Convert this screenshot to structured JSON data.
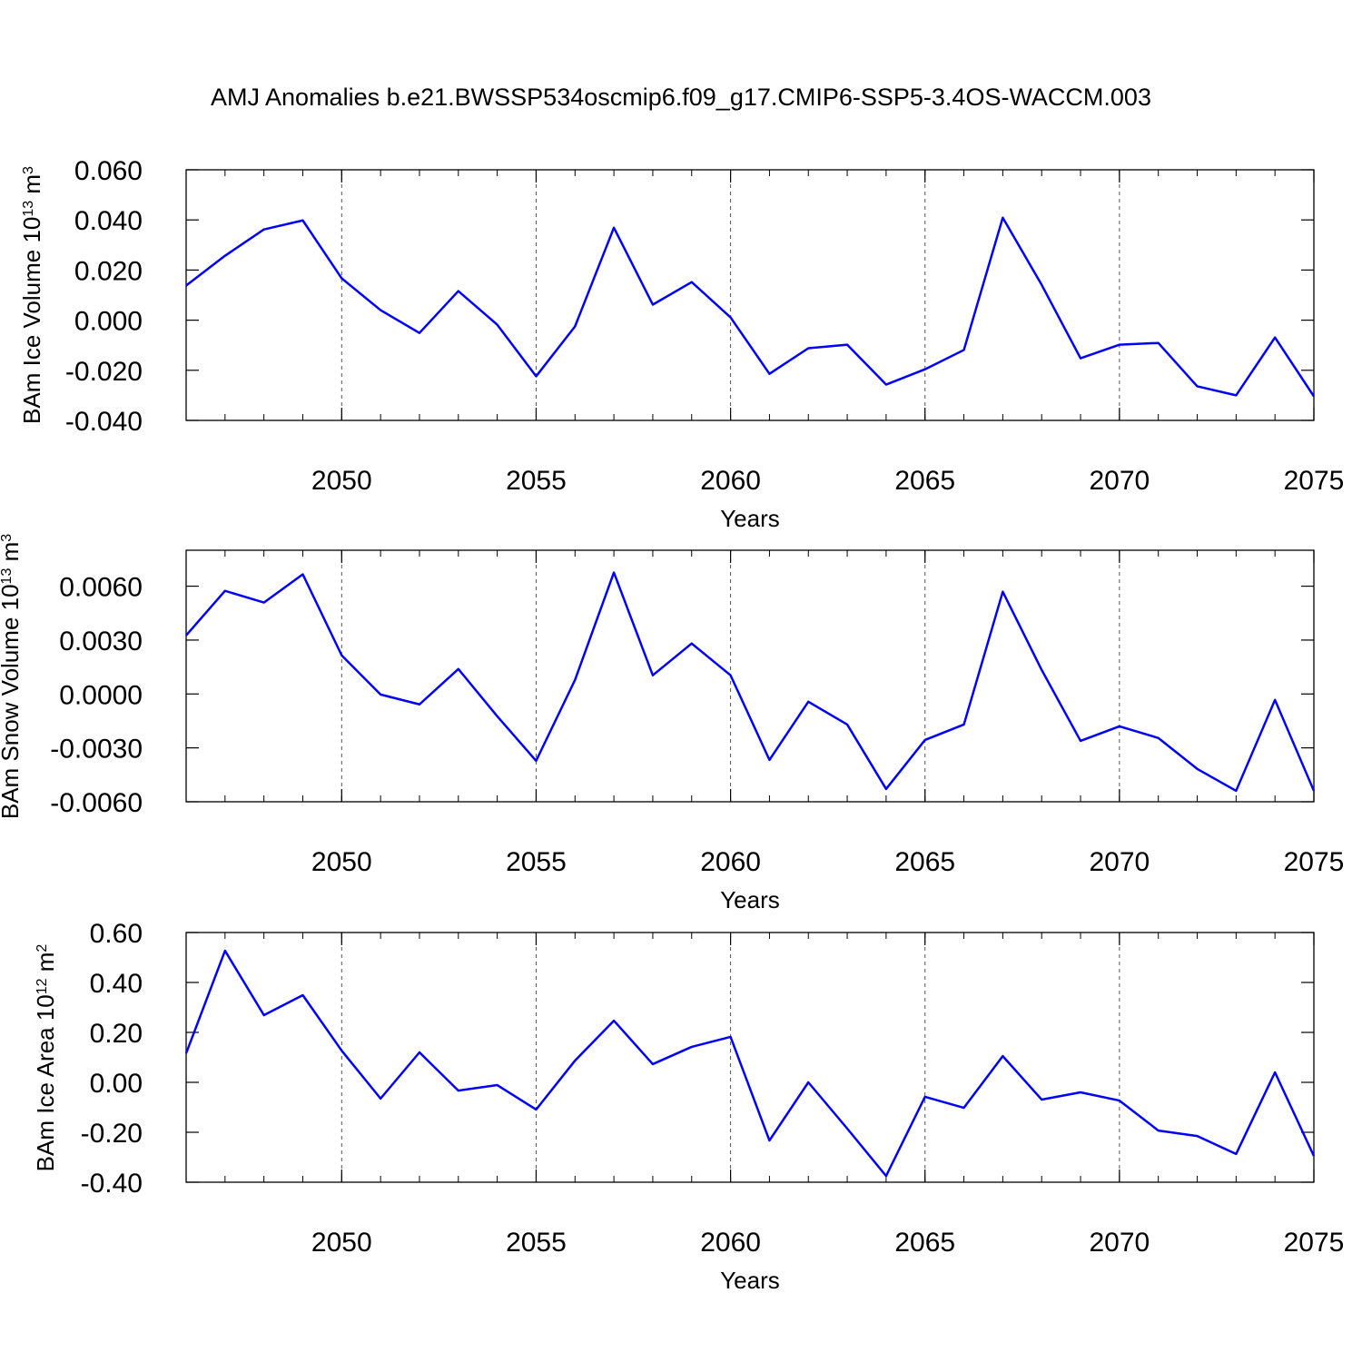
{
  "title": "AMJ Anomalies b.e21.BWSSP534oscmip6.f09_g17.CMIP6-SSP5-3.4OS-WACCM.003",
  "chart_data": [
    {
      "type": "line",
      "xlabel": "Years",
      "ylabel": [
        "BAm Ice Volume 10",
        "13",
        " m",
        "3"
      ],
      "x": [
        2046,
        2047,
        2048,
        2049,
        2050,
        2051,
        2052,
        2053,
        2054,
        2055,
        2056,
        2057,
        2058,
        2059,
        2060,
        2061,
        2062,
        2063,
        2064,
        2065,
        2066,
        2067,
        2068,
        2069,
        2070,
        2071,
        2072,
        2073,
        2074,
        2075
      ],
      "values": [
        0.0138,
        0.0257,
        0.0362,
        0.0398,
        0.0167,
        0.004,
        -0.0051,
        0.0116,
        -0.0018,
        -0.0224,
        -0.0025,
        0.0369,
        0.0062,
        0.0152,
        0.0011,
        -0.0214,
        -0.0112,
        -0.0098,
        -0.0257,
        -0.0196,
        -0.0119,
        0.0409,
        0.0141,
        -0.0152,
        -0.0098,
        -0.0091,
        -0.0264,
        -0.03,
        -0.0069,
        -0.0304
      ],
      "color": "#0000ff",
      "xlim": [
        2046,
        2075
      ],
      "xticks": [
        2050,
        2055,
        2060,
        2065,
        2070,
        2075
      ],
      "ylim": [
        -0.04,
        0.06
      ],
      "yticks": [
        {
          "value": 0.06,
          "label": "0.060"
        },
        {
          "value": 0.04,
          "label": "0.040"
        },
        {
          "value": 0.02,
          "label": "0.020"
        },
        {
          "value": 0,
          "label": "0.000"
        },
        {
          "value": -0.02,
          "label": "-0.020"
        },
        {
          "value": -0.04,
          "label": "-0.040"
        }
      ],
      "grid": true
    },
    {
      "type": "line",
      "xlabel": "Years",
      "ylabel": [
        "BAm Snow Volume 10",
        "13",
        " m",
        "3"
      ],
      "x": [
        2046,
        2047,
        2048,
        2049,
        2050,
        2051,
        2052,
        2053,
        2054,
        2055,
        2056,
        2057,
        2058,
        2059,
        2060,
        2061,
        2062,
        2063,
        2064,
        2065,
        2066,
        2067,
        2068,
        2069,
        2070,
        2071,
        2072,
        2073,
        2074,
        2075
      ],
      "values": [
        0.00326,
        0.00574,
        0.00509,
        0.00666,
        0.00215,
        -3e-05,
        -0.00058,
        0.00139,
        -0.00124,
        -0.00372,
        0.00078,
        0.00676,
        0.00104,
        0.00281,
        0.00104,
        -0.00367,
        -0.00043,
        -0.0017,
        -0.00529,
        -0.00256,
        -0.0017,
        0.00569,
        0.00134,
        -0.00261,
        -0.0018,
        -0.00245,
        -0.00417,
        -0.00539,
        -0.00033,
        -0.00539
      ],
      "color": "#0000ff",
      "xlim": [
        2046,
        2075
      ],
      "xticks": [
        2050,
        2055,
        2060,
        2065,
        2070,
        2075
      ],
      "ylim": [
        -0.006,
        0.008
      ],
      "yticks": [
        {
          "value": 0.006,
          "label": "0.0060"
        },
        {
          "value": 0.003,
          "label": "0.0030"
        },
        {
          "value": 0,
          "label": "0.0000"
        },
        {
          "value": -0.003,
          "label": "-0.0030"
        },
        {
          "value": -0.006,
          "label": "-0.0060"
        }
      ],
      "grid": true
    },
    {
      "type": "line",
      "xlabel": "Years",
      "ylabel": [
        "BAm Ice Area 10",
        "12",
        " m",
        "2"
      ],
      "x": [
        2046,
        2047,
        2048,
        2049,
        2050,
        2051,
        2052,
        2053,
        2054,
        2055,
        2056,
        2057,
        2058,
        2059,
        2060,
        2061,
        2062,
        2063,
        2064,
        2065,
        2066,
        2067,
        2068,
        2069,
        2070,
        2071,
        2072,
        2073,
        2074,
        2075
      ],
      "values": [
        0.116,
        0.527,
        0.269,
        0.349,
        0.127,
        -0.065,
        0.12,
        -0.033,
        -0.011,
        -0.109,
        0.087,
        0.247,
        0.073,
        0.142,
        0.182,
        -0.233,
        0.0,
        -0.185,
        -0.375,
        -0.058,
        -0.102,
        0.105,
        -0.069,
        -0.04,
        -0.073,
        -0.193,
        -0.215,
        -0.287,
        0.04,
        -0.295
      ],
      "color": "#0000ff",
      "xlim": [
        2046,
        2075
      ],
      "xticks": [
        2050,
        2055,
        2060,
        2065,
        2070,
        2075
      ],
      "ylim": [
        -0.4,
        0.6
      ],
      "yticks": [
        {
          "value": 0.6,
          "label": "0.60"
        },
        {
          "value": 0.4,
          "label": "0.40"
        },
        {
          "value": 0.2,
          "label": "0.20"
        },
        {
          "value": 0,
          "label": "0.00"
        },
        {
          "value": -0.2,
          "label": "-0.20"
        },
        {
          "value": -0.4,
          "label": "-0.40"
        }
      ],
      "grid": true
    }
  ]
}
